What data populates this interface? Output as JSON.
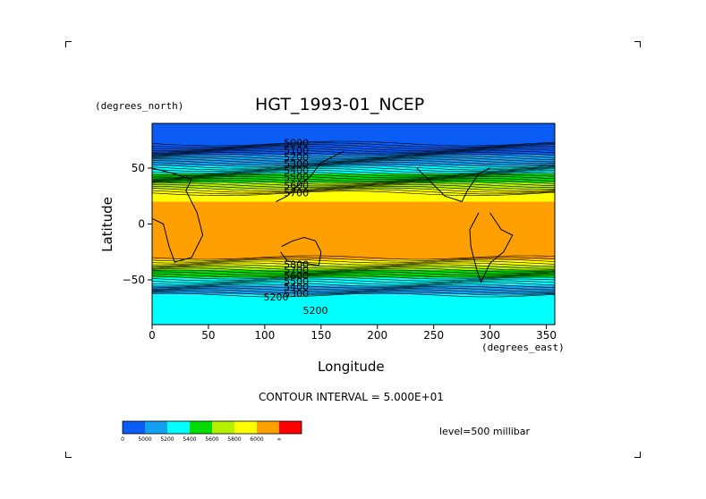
{
  "chart_data": {
    "type": "heatmap",
    "title": "HGT_1993-01_NCEP",
    "xlabel": "Longitude",
    "ylabel": "Latitude",
    "x_units": "(degrees_east)",
    "y_units": "(degrees_north)",
    "xlim": [
      0,
      357.5
    ],
    "ylim": [
      -90,
      90
    ],
    "xticks": [
      0,
      50,
      100,
      150,
      200,
      250,
      300,
      350
    ],
    "yticks": [
      50,
      0,
      -50
    ],
    "ytick_labels": [
      "50",
      "0",
      "−50"
    ],
    "contour_interval_text": "CONTOUR INTERVAL = 5.000E+01",
    "level_text": "level=500 millibar",
    "contour_labels": [
      {
        "text": "5000",
        "lon": 128,
        "lat": 73
      },
      {
        "text": "5100",
        "lon": 128,
        "lat": 66
      },
      {
        "text": "5200",
        "lon": 128,
        "lat": 60
      },
      {
        "text": "5300",
        "lon": 128,
        "lat": 54
      },
      {
        "text": "5400",
        "lon": 128,
        "lat": 48
      },
      {
        "text": "5500",
        "lon": 128,
        "lat": 42
      },
      {
        "text": "5600",
        "lon": 128,
        "lat": 35
      },
      {
        "text": "5700",
        "lon": 128,
        "lat": 28
      },
      {
        "text": "5800",
        "lon": 128,
        "lat": -36
      },
      {
        "text": "5700",
        "lon": 128,
        "lat": -41
      },
      {
        "text": "5600",
        "lon": 128,
        "lat": -46
      },
      {
        "text": "5500",
        "lon": 128,
        "lat": -51
      },
      {
        "text": "5400",
        "lon": 128,
        "lat": -56
      },
      {
        "text": "5300",
        "lon": 128,
        "lat": -62
      },
      {
        "text": "5200",
        "lon": 110,
        "lat": -65
      },
      {
        "text": "5200",
        "lon": 145,
        "lat": -77
      }
    ],
    "colorbar": {
      "levels": [
        "0",
        "5000",
        "5200",
        "5400",
        "5600",
        "5800",
        "6000",
        "∞"
      ],
      "colors": [
        "#0a5cf5",
        "#14a0f0",
        "#00ffff",
        "#00dc00",
        "#b4f000",
        "#ffff00",
        "#ffa000",
        "#ff0000"
      ]
    },
    "bands": [
      {
        "lat_from": 90,
        "lat_to": 62,
        "color": "#0a5cf5"
      },
      {
        "lat_from": 62,
        "lat_to": 52,
        "color": "#14a0f0"
      },
      {
        "lat_from": 52,
        "lat_to": 45,
        "color": "#00ffff"
      },
      {
        "lat_from": 45,
        "lat_to": 37,
        "color": "#00dc00"
      },
      {
        "lat_from": 37,
        "lat_to": 31,
        "color": "#b4f000"
      },
      {
        "lat_from": 31,
        "lat_to": 20,
        "color": "#ffff00"
      },
      {
        "lat_from": 20,
        "lat_to": -32,
        "color": "#ffa000"
      },
      {
        "lat_from": -32,
        "lat_to": -37,
        "color": "#ffff00"
      },
      {
        "lat_from": -37,
        "lat_to": -41,
        "color": "#b4f000"
      },
      {
        "lat_from": -41,
        "lat_to": -48,
        "color": "#00dc00"
      },
      {
        "lat_from": -48,
        "lat_to": -55,
        "color": "#00ffff"
      },
      {
        "lat_from": -55,
        "lat_to": -63,
        "color": "#14a0f0"
      },
      {
        "lat_from": -63,
        "lat_to": -90,
        "color": "#00ffff"
      }
    ]
  }
}
